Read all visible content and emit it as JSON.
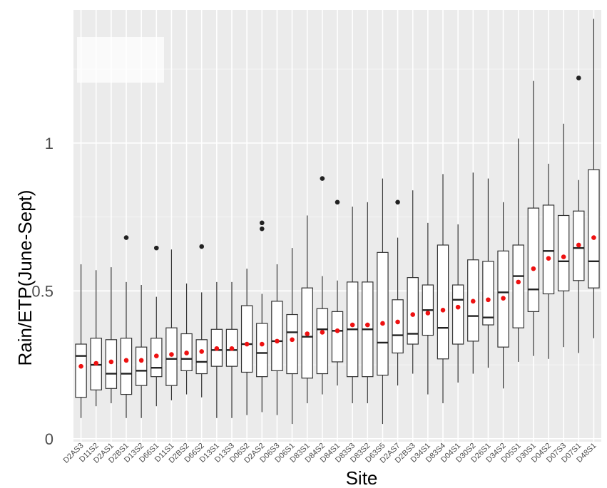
{
  "chart_data": {
    "type": "boxplot",
    "title": "",
    "xlabel": "Site",
    "ylabel": "Rain/ETP(June-Sept)",
    "ylim": [
      -0.01,
      1.45
    ],
    "yticks": [
      0,
      0.5,
      1
    ],
    "ytick_labels": [
      "0",
      "0.5",
      "1"
    ],
    "grid": true,
    "legend": "none",
    "colors": {
      "panel": "#ebebeb",
      "grid_major": "#ffffff",
      "grid_minor": "#f5f5f5",
      "box_fill": "#ffffff",
      "box_line": "#333333",
      "median": "#222222",
      "mean_marker": "#ee1111",
      "outlier": "#222222"
    },
    "categories": [
      "D2AS3",
      "D11S2",
      "D2AS1",
      "D2BS1",
      "D13S2",
      "D66S1",
      "D11S1",
      "D2BS2",
      "D66S2",
      "D13S1",
      "D13S3",
      "D06S2",
      "D2AS2",
      "D06S3",
      "D06S1",
      "D83S1",
      "D84S2",
      "D84S1",
      "D83S3",
      "D83S2",
      "D63S5",
      "D2AS7",
      "D2BS3",
      "D34S1",
      "D83S4",
      "D04S1",
      "D30S2",
      "D26S1",
      "D34S2",
      "D05S1",
      "D30S1",
      "D04S2",
      "D07S3",
      "D07S1",
      "D48S1"
    ],
    "series": [
      {
        "stats": [
          {
            "min": 0.07,
            "q1": 0.14,
            "median": 0.28,
            "q3": 0.32,
            "max": 0.59,
            "mean": 0.245,
            "outliers": []
          },
          {
            "min": 0.11,
            "q1": 0.165,
            "median": 0.25,
            "q3": 0.34,
            "max": 0.57,
            "mean": 0.255,
            "outliers": []
          },
          {
            "min": 0.12,
            "q1": 0.17,
            "median": 0.22,
            "q3": 0.335,
            "max": 0.58,
            "mean": 0.26,
            "outliers": []
          },
          {
            "min": 0.07,
            "q1": 0.15,
            "median": 0.22,
            "q3": 0.34,
            "max": 0.53,
            "mean": 0.265,
            "outliers": [
              0.68
            ]
          },
          {
            "min": 0.07,
            "q1": 0.18,
            "median": 0.23,
            "q3": 0.31,
            "max": 0.52,
            "mean": 0.265,
            "outliers": []
          },
          {
            "min": 0.11,
            "q1": 0.21,
            "median": 0.24,
            "q3": 0.34,
            "max": 0.48,
            "mean": 0.28,
            "outliers": [
              0.645
            ]
          },
          {
            "min": 0.13,
            "q1": 0.18,
            "median": 0.27,
            "q3": 0.375,
            "max": 0.64,
            "mean": 0.285,
            "outliers": []
          },
          {
            "min": 0.15,
            "q1": 0.23,
            "median": 0.27,
            "q3": 0.355,
            "max": 0.525,
            "mean": 0.29,
            "outliers": []
          },
          {
            "min": 0.14,
            "q1": 0.22,
            "median": 0.26,
            "q3": 0.335,
            "max": 0.495,
            "mean": 0.295,
            "outliers": [
              0.65
            ]
          },
          {
            "min": 0.07,
            "q1": 0.245,
            "median": 0.3,
            "q3": 0.37,
            "max": 0.53,
            "mean": 0.305,
            "outliers": []
          },
          {
            "min": 0.07,
            "q1": 0.245,
            "median": 0.3,
            "q3": 0.37,
            "max": 0.53,
            "mean": 0.305,
            "outliers": []
          },
          {
            "min": 0.08,
            "q1": 0.225,
            "median": 0.32,
            "q3": 0.45,
            "max": 0.575,
            "mean": 0.32,
            "outliers": []
          },
          {
            "min": 0.09,
            "q1": 0.21,
            "median": 0.29,
            "q3": 0.39,
            "max": 0.49,
            "mean": 0.32,
            "outliers": [
              0.71,
              0.73
            ]
          },
          {
            "min": 0.08,
            "q1": 0.23,
            "median": 0.33,
            "q3": 0.465,
            "max": 0.59,
            "mean": 0.33,
            "outliers": []
          },
          {
            "min": 0.05,
            "q1": 0.22,
            "median": 0.36,
            "q3": 0.42,
            "max": 0.645,
            "mean": 0.335,
            "outliers": []
          },
          {
            "min": 0.12,
            "q1": 0.205,
            "median": 0.345,
            "q3": 0.51,
            "max": 0.755,
            "mean": 0.355,
            "outliers": []
          },
          {
            "min": 0.15,
            "q1": 0.22,
            "median": 0.37,
            "q3": 0.44,
            "max": 0.55,
            "mean": 0.36,
            "outliers": [
              0.88
            ]
          },
          {
            "min": 0.18,
            "q1": 0.26,
            "median": 0.365,
            "q3": 0.43,
            "max": 0.535,
            "mean": 0.365,
            "outliers": [
              0.8
            ]
          },
          {
            "min": 0.12,
            "q1": 0.21,
            "median": 0.37,
            "q3": 0.53,
            "max": 0.785,
            "mean": 0.385,
            "outliers": []
          },
          {
            "min": 0.12,
            "q1": 0.21,
            "median": 0.37,
            "q3": 0.53,
            "max": 0.8,
            "mean": 0.385,
            "outliers": []
          },
          {
            "min": 0.05,
            "q1": 0.215,
            "median": 0.325,
            "q3": 0.63,
            "max": 0.88,
            "mean": 0.39,
            "outliers": []
          },
          {
            "min": 0.18,
            "q1": 0.29,
            "median": 0.35,
            "q3": 0.47,
            "max": 0.68,
            "mean": 0.395,
            "outliers": [
              0.8
            ]
          },
          {
            "min": 0.22,
            "q1": 0.32,
            "median": 0.355,
            "q3": 0.545,
            "max": 0.84,
            "mean": 0.42,
            "outliers": []
          },
          {
            "min": 0.15,
            "q1": 0.35,
            "median": 0.435,
            "q3": 0.52,
            "max": 0.73,
            "mean": 0.425,
            "outliers": []
          },
          {
            "min": 0.12,
            "q1": 0.27,
            "median": 0.375,
            "q3": 0.655,
            "max": 0.895,
            "mean": 0.435,
            "outliers": []
          },
          {
            "min": 0.19,
            "q1": 0.32,
            "median": 0.47,
            "q3": 0.52,
            "max": 0.725,
            "mean": 0.445,
            "outliers": []
          },
          {
            "min": 0.22,
            "q1": 0.33,
            "median": 0.415,
            "q3": 0.605,
            "max": 0.9,
            "mean": 0.465,
            "outliers": []
          },
          {
            "min": 0.24,
            "q1": 0.385,
            "median": 0.41,
            "q3": 0.6,
            "max": 0.88,
            "mean": 0.47,
            "outliers": []
          },
          {
            "min": 0.17,
            "q1": 0.31,
            "median": 0.495,
            "q3": 0.635,
            "max": 0.8,
            "mean": 0.475,
            "outliers": []
          },
          {
            "min": 0.26,
            "q1": 0.375,
            "median": 0.55,
            "q3": 0.655,
            "max": 1.015,
            "mean": 0.53,
            "outliers": []
          },
          {
            "min": 0.28,
            "q1": 0.43,
            "median": 0.505,
            "q3": 0.78,
            "max": 1.21,
            "mean": 0.575,
            "outliers": []
          },
          {
            "min": 0.27,
            "q1": 0.49,
            "median": 0.635,
            "q3": 0.79,
            "max": 0.93,
            "mean": 0.61,
            "outliers": []
          },
          {
            "min": 0.31,
            "q1": 0.5,
            "median": 0.6,
            "q3": 0.755,
            "max": 1.065,
            "mean": 0.615,
            "outliers": []
          },
          {
            "min": 0.29,
            "q1": 0.535,
            "median": 0.645,
            "q3": 0.77,
            "max": 0.875,
            "mean": 0.655,
            "outliers": [
              1.22
            ]
          },
          {
            "min": 0.34,
            "q1": 0.51,
            "median": 0.6,
            "q3": 0.91,
            "max": 1.42,
            "mean": 0.68,
            "outliers": []
          }
        ]
      }
    ]
  }
}
